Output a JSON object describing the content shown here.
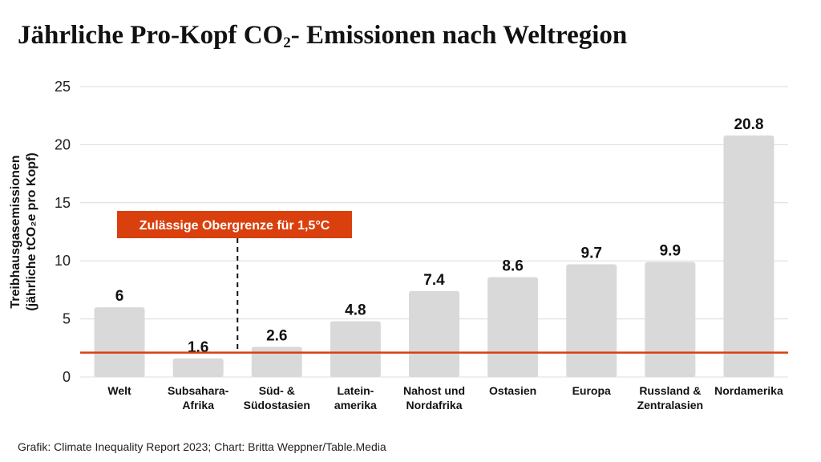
{
  "title_main": "Jährliche Pro-Kopf CO",
  "title_sub": "2",
  "title_rest": "- Emissionen nach Weltregion",
  "source": "Grafik: Climate Inequality Report 2023; Chart: Britta Weppner/Table.Media",
  "colors": {
    "bar": "#d9d9d9",
    "threshold": "#d9400e",
    "grid": "#dcdcdc"
  },
  "chart_data": {
    "type": "bar",
    "title": "Jährliche Pro-Kopf CO₂- Emissionen nach Weltregion",
    "xlabel": "",
    "ylabel_lines": [
      "Treibhausgasemissionen",
      "(jährliche tCO₂e pro Kopf)"
    ],
    "ylim": [
      0,
      25
    ],
    "yticks": [
      0,
      5,
      10,
      15,
      20,
      25
    ],
    "grid": true,
    "categories": [
      [
        "Welt"
      ],
      [
        "Subsahara-",
        "Afrika"
      ],
      [
        "Süd- &",
        "Südostasien"
      ],
      [
        "Latein-",
        "amerika"
      ],
      [
        "Nahost und",
        "Nordafrika"
      ],
      [
        "Ostasien"
      ],
      [
        "Europa"
      ],
      [
        "Russland &",
        "Zentralasien"
      ],
      [
        "Nordamerika"
      ]
    ],
    "values": [
      6,
      1.6,
      2.6,
      4.8,
      7.4,
      8.6,
      9.7,
      9.9,
      20.8
    ],
    "value_labels": [
      "6",
      "1.6",
      "2.6",
      "4.8",
      "7.4",
      "8.6",
      "9.7",
      "9.9",
      "20.8"
    ],
    "threshold": {
      "value": 2.1,
      "label": "Zulässige Obergrenze für 1,5°C",
      "after_category_index": 1
    }
  }
}
